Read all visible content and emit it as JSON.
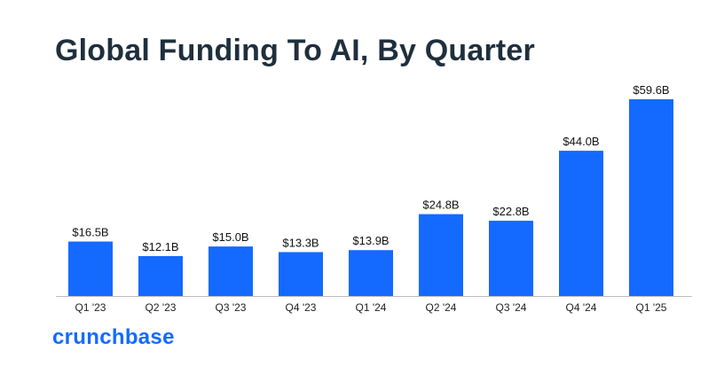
{
  "header": {
    "title": "Global Funding To AI, By Quarter"
  },
  "brand": {
    "logo_text": "crunchbase"
  },
  "chart_data": {
    "type": "bar",
    "title": "Global Funding To AI, By Quarter",
    "xlabel": "",
    "ylabel": "",
    "categories": [
      "Q1 '23",
      "Q2 '23",
      "Q3 '23",
      "Q4 '23",
      "Q1 '24",
      "Q2 '24",
      "Q3 '24",
      "Q4 '24",
      "Q1 '25"
    ],
    "values": [
      16.5,
      12.1,
      15.0,
      13.3,
      13.9,
      24.8,
      22.8,
      44.0,
      59.6
    ],
    "data_labels": [
      "$16.5B",
      "$12.1B",
      "$15.0B",
      "$13.3B",
      "$13.9B",
      "$24.8B",
      "$22.8B",
      "$44.0B",
      "$59.6B"
    ],
    "ylim": [
      0,
      59.6
    ],
    "grid": false,
    "legend": "none",
    "colors": {
      "bar": "#146aff",
      "axis": "#bdbdbd",
      "label": "#111111",
      "tick": "#222222",
      "title": "#1f2f3d",
      "brand": "#146aff"
    }
  }
}
